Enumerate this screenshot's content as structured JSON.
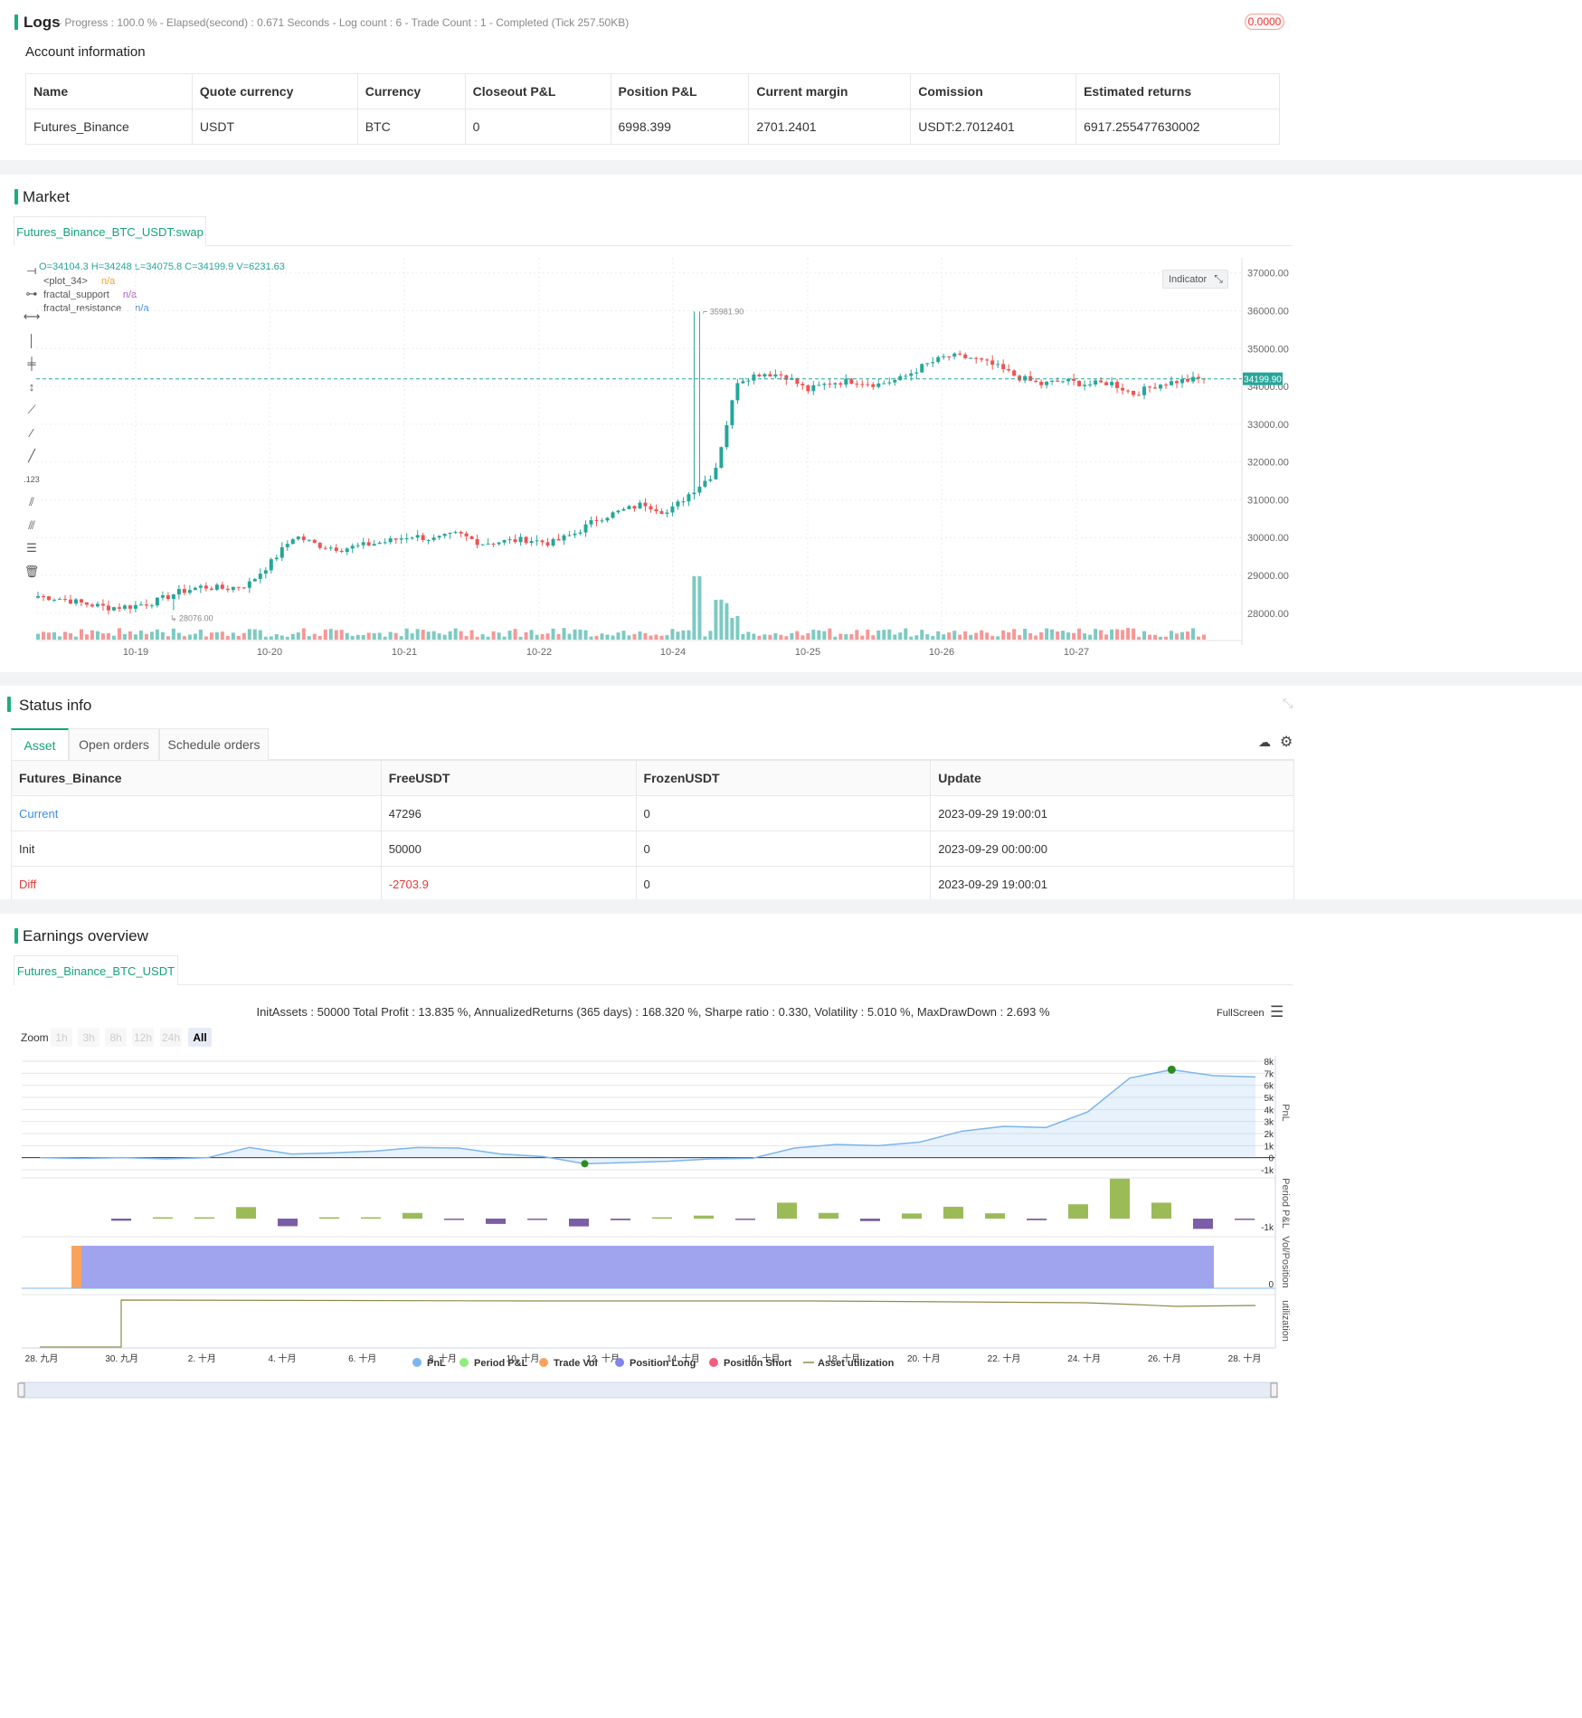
{
  "logs": {
    "title": "Logs",
    "status": "- Progress : 100.0 % - Elapsed(second) : 0.671 Seconds - Log count : 6 - Trade Count : 1 - Completed (Tick 257.50KB)",
    "badge": "0.0000"
  },
  "account": {
    "title": "Account information",
    "headers": [
      "Name",
      "Quote currency",
      "Currency",
      "Closeout P&L",
      "Position P&L",
      "Current margin",
      "Comission",
      "Estimated returns"
    ],
    "row": [
      "Futures_Binance",
      "USDT",
      "BTC",
      "0",
      "6998.399",
      "2701.2401",
      "USDT:2.7012401",
      "6917.255477630002"
    ]
  },
  "market": {
    "title": "Market",
    "tab": "Futures_Binance_BTC_USDT:swap",
    "ohlc": "O=34104.3 H=34248 L=34075.8 C=34199.9 V=6231.63",
    "legend": [
      {
        "name": "<plot_34>",
        "value": "n/a",
        "color": "#f0a020"
      },
      {
        "name": "fractal_support",
        "value": "n/a",
        "color": "#b05cc8"
      },
      {
        "name": "fractal_resistance",
        "value": "n/a",
        "color": "#3a8ee0"
      }
    ],
    "indicator_button": "Indicator",
    "price_label": "34199.90",
    "high_label": "35981.90",
    "low_label": "28076.00",
    "y_ticks": [
      "37000.00",
      "36000.00",
      "35000.00",
      "34000.00",
      "33000.00",
      "32000.00",
      "31000.00",
      "30000.00",
      "29000.00",
      "28000.00"
    ],
    "x_ticks": [
      "10-19",
      "10-20",
      "10-21",
      "10-22",
      "10-24",
      "10-25",
      "10-26",
      "10-27"
    ],
    "up_color": "#26a69a",
    "down_color": "#ef5350"
  },
  "status": {
    "title": "Status info",
    "tabs": [
      "Asset",
      "Open orders",
      "Schedule orders"
    ],
    "headers": [
      "Futures_Binance",
      "FreeUSDT",
      "FrozenUSDT",
      "Update"
    ],
    "rows": [
      {
        "label": "Current",
        "free": "47296",
        "frozen": "0",
        "update": "2023-09-29 19:00:01"
      },
      {
        "label": "Init",
        "free": "50000",
        "frozen": "0",
        "update": "2023-09-29 00:00:00"
      },
      {
        "label": "Diff",
        "free": "-2703.9",
        "frozen": "0",
        "update": "2023-09-29 19:00:01"
      }
    ]
  },
  "earnings": {
    "title": "Earnings overview",
    "tab": "Futures_Binance_BTC_USDT",
    "summary": "InitAssets : 50000 Total Profit : 13.835 %, AnnualizedReturns (365 days) : 168.320 %, Sharpe ratio : 0.330, Volatility : 5.010 %, MaxDrawDown : 2.693 %",
    "fullscreen": "FullScreen",
    "zoom_label": "Zoom",
    "zoom_buttons": [
      "1h",
      "3h",
      "8h",
      "12h",
      "24h",
      "All"
    ],
    "pnl_ticks": [
      "8k",
      "7k",
      "6k",
      "5k",
      "4k",
      "3k",
      "2k",
      "1k",
      "0",
      "-1k"
    ],
    "period_tick": "-1k",
    "vol_tick": "0",
    "axis_titles": [
      "PnL",
      "Period P&L",
      "Vol/Position",
      "utilization"
    ],
    "x_ticks": [
      "28. 九月",
      "30. 九月",
      "2. 十月",
      "4. 十月",
      "6. 十月",
      "8. 十月",
      "10. 十月",
      "12. 十月",
      "14. 十月",
      "16. 十月",
      "18. 十月",
      "20. 十月",
      "22. 十月",
      "24. 十月",
      "26. 十月",
      "28. 十月"
    ],
    "legend": [
      {
        "name": "PnL",
        "color": "#7cb5ec"
      },
      {
        "name": "Period P&L",
        "color": "#90ed7d"
      },
      {
        "name": "Trade Vol",
        "color": "#f7a35c"
      },
      {
        "name": "Position Long",
        "color": "#8085e9"
      },
      {
        "name": "Position Short",
        "color": "#f15c80"
      },
      {
        "name": "Asset utilization",
        "color": "#8d8a4a"
      }
    ]
  },
  "chart_data": [
    {
      "type": "candlestick",
      "title": "Futures_Binance_BTC_USDT:swap",
      "ylim": [
        27300,
        37400
      ],
      "x": [
        "10-19",
        "10-20",
        "10-21",
        "10-22",
        "10-24",
        "10-25",
        "10-26",
        "10-27"
      ],
      "close_path": [
        28450,
        28380,
        28250,
        28150,
        28180,
        28300,
        28550,
        28700,
        28650,
        28750,
        29350,
        30050,
        29800,
        29700,
        29800,
        29900,
        30050,
        29950,
        30100,
        29850,
        29900,
        29950,
        29850,
        30100,
        30500,
        30700,
        30900,
        30650,
        31200,
        31700,
        34150,
        34350,
        34300,
        33900,
        34100,
        34150,
        34050,
        34200,
        34550,
        34800,
        34750,
        34550,
        34250,
        34050,
        34150,
        34050,
        34100,
        33800,
        34050,
        34150,
        34200
      ],
      "high_marker": 35981.9,
      "low_marker": 28076.0,
      "last_price": 34199.9
    },
    {
      "type": "line",
      "title": "PnL",
      "ylim": [
        -1000,
        8000
      ],
      "values": [
        0,
        -50,
        0,
        -100,
        0,
        850,
        300,
        400,
        550,
        850,
        800,
        300,
        100,
        -500,
        -400,
        -300,
        -100,
        -50,
        800,
        1100,
        1000,
        1300,
        2200,
        2600,
        2500,
        3800,
        6600,
        7300,
        6800,
        6700
      ],
      "max_value": 7300,
      "min_value": -500
    },
    {
      "type": "bar",
      "title": "Period P&L",
      "values": [
        -120,
        60,
        50,
        650,
        -430,
        30,
        60,
        320,
        -10,
        -300,
        -40,
        -440,
        -90,
        0,
        170,
        -30,
        900,
        320,
        -140,
        290,
        670,
        300,
        -90,
        810,
        2260,
        900,
        -580,
        -20
      ]
    }
  ]
}
